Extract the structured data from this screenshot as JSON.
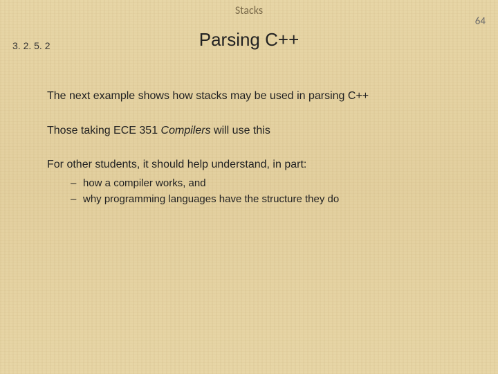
{
  "header": {
    "topic": "Stacks",
    "page_number": "64",
    "section_number": "3. 2. 5. 2",
    "title": "Parsing C++"
  },
  "body": {
    "para1": "The next example shows how stacks may be used in parsing C++",
    "para2_pre": "Those taking ECE 351 ",
    "para2_course": "Compilers",
    "para2_post": " will use this",
    "para3": "For other students, it should help understand, in part:",
    "bullets": {
      "b1": "how a compiler works, and",
      "b2": "why programming languages have the structure they do"
    }
  },
  "style": {
    "text_color": "#222222",
    "muted_color": "#7a6a4a",
    "bg_base": "#e8d7a8",
    "title_fontsize": 26,
    "body_fontsize": 16
  }
}
